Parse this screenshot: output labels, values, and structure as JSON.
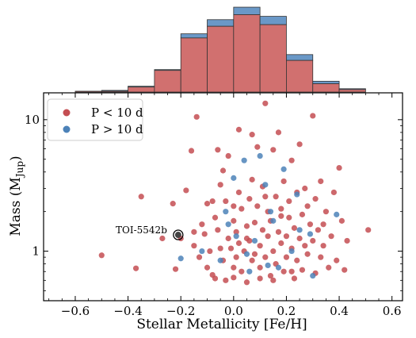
{
  "chart_data": {
    "type": "scatter",
    "xlabel": "Stellar Metallicity [Fe/H]",
    "ylabel_main": "Mass (M",
    "ylabel_sub": "Jup",
    "ylabel_close": ")",
    "xlim": [
      -0.72,
      0.64
    ],
    "ylim": [
      0.42,
      16
    ],
    "yscale": "log",
    "x_ticks": [
      -0.6,
      -0.4,
      -0.2,
      0.0,
      0.2,
      0.4,
      0.6
    ],
    "x_tick_labels": [
      "−0.6",
      "−0.4",
      "−0.2",
      "0.0",
      "0.2",
      "0.4",
      "0.6"
    ],
    "y_ticks": [
      1,
      10
    ],
    "y_tick_labels": [
      "1",
      "10"
    ],
    "legend": {
      "placement": "top-left",
      "entries": [
        {
          "label": "P < 10 d",
          "color": "#c44e52"
        },
        {
          "label": "P > 10 d",
          "color": "#4c82b8"
        }
      ]
    },
    "colors": {
      "short": "#c44e52",
      "long": "#4c82b8",
      "short_hist": "#d1706f",
      "long_hist": "#6a98c7"
    },
    "annotation": {
      "label": "TOI-5542b",
      "x": -0.21,
      "y": 1.33
    },
    "histogram": {
      "bins": [
        -0.6,
        -0.5,
        -0.4,
        -0.3,
        -0.2,
        -0.1,
        0.0,
        0.1,
        0.2,
        0.3,
        0.4,
        0.5
      ],
      "short_counts": [
        1,
        1,
        6,
        26,
        65,
        79,
        93,
        81,
        38,
        10,
        3
      ],
      "long_counts": [
        0,
        1,
        1,
        1,
        5,
        8,
        9,
        10,
        7,
        3,
        1
      ],
      "max_count": 103
    },
    "series": [
      {
        "name": "P < 10 d",
        "points": [
          [
            -0.5,
            0.93
          ],
          [
            -0.37,
            0.74
          ],
          [
            -0.35,
            2.6
          ],
          [
            -0.27,
            1.25
          ],
          [
            -0.23,
            2.3
          ],
          [
            -0.22,
            0.73
          ],
          [
            -0.2,
            1.25
          ],
          [
            -0.18,
            2.9
          ],
          [
            -0.16,
            5.8
          ],
          [
            -0.15,
            1.1
          ],
          [
            -0.13,
            0.9
          ],
          [
            -0.12,
            1.6
          ],
          [
            -0.11,
            1.35
          ],
          [
            -0.1,
            0.75
          ],
          [
            -0.1,
            2.3
          ],
          [
            -0.09,
            1.0
          ],
          [
            -0.08,
            2.4
          ],
          [
            -0.07,
            1.8
          ],
          [
            -0.07,
            0.62
          ],
          [
            -0.06,
            1.45
          ],
          [
            -0.06,
            5.9
          ],
          [
            -0.05,
            1.05
          ],
          [
            -0.05,
            3.2
          ],
          [
            -0.04,
            0.85
          ],
          [
            -0.04,
            4.1
          ],
          [
            -0.03,
            2.4
          ],
          [
            -0.03,
            0.6
          ],
          [
            -0.02,
            5.3
          ],
          [
            -0.02,
            1.25
          ],
          [
            -0.01,
            1.05
          ],
          [
            0.0,
            2.2
          ],
          [
            0.0,
            0.75
          ],
          [
            0.0,
            1.7
          ],
          [
            0.01,
            1.4
          ],
          [
            0.01,
            0.9
          ],
          [
            0.02,
            2.8
          ],
          [
            0.02,
            1.15
          ],
          [
            0.03,
            0.7
          ],
          [
            0.03,
            2.1
          ],
          [
            0.04,
            1.0
          ],
          [
            0.05,
            1.55
          ],
          [
            0.05,
            0.58
          ],
          [
            0.06,
            2.5
          ],
          [
            0.06,
            1.2
          ],
          [
            0.07,
            0.85
          ],
          [
            0.07,
            3.5
          ],
          [
            0.08,
            1.65
          ],
          [
            0.08,
            0.95
          ],
          [
            0.09,
            6.2
          ],
          [
            0.09,
            2.2
          ],
          [
            0.1,
            0.75
          ],
          [
            0.1,
            1.1
          ],
          [
            0.11,
            1.45
          ],
          [
            0.11,
            3.1
          ],
          [
            0.12,
            13.3
          ],
          [
            0.12,
            0.9
          ],
          [
            0.13,
            2.0
          ],
          [
            0.13,
            1.3
          ],
          [
            0.14,
            0.65
          ],
          [
            0.14,
            1.7
          ],
          [
            0.15,
            5.9
          ],
          [
            0.15,
            1.0
          ],
          [
            0.16,
            2.6
          ],
          [
            0.16,
            0.8
          ],
          [
            0.17,
            1.4
          ],
          [
            0.17,
            8.0
          ],
          [
            0.18,
            1.15
          ],
          [
            0.18,
            2.1
          ],
          [
            0.19,
            0.7
          ],
          [
            0.19,
            3.4
          ],
          [
            0.2,
            1.3
          ],
          [
            0.2,
            0.9
          ],
          [
            0.21,
            1.8
          ],
          [
            0.21,
            2.4
          ],
          [
            0.22,
            1.05
          ],
          [
            0.22,
            4.9
          ],
          [
            0.23,
            0.62
          ],
          [
            0.23,
            1.5
          ],
          [
            0.24,
            2.8
          ],
          [
            0.24,
            0.85
          ],
          [
            0.25,
            1.25
          ],
          [
            0.26,
            1.9
          ],
          [
            0.26,
            0.72
          ],
          [
            0.27,
            3.0
          ],
          [
            0.27,
            1.1
          ],
          [
            0.28,
            2.2
          ],
          [
            0.28,
            0.95
          ],
          [
            0.29,
            1.6
          ],
          [
            0.3,
            10.7
          ],
          [
            0.3,
            1.2
          ],
          [
            0.31,
            2.5
          ],
          [
            0.31,
            0.68
          ],
          [
            0.32,
            1.45
          ],
          [
            0.33,
            0.9
          ],
          [
            0.33,
            3.4
          ],
          [
            0.34,
            1.1
          ],
          [
            0.35,
            2.0
          ],
          [
            0.36,
            0.75
          ],
          [
            0.37,
            1.3
          ],
          [
            0.38,
            2.8
          ],
          [
            0.39,
            0.85
          ],
          [
            0.4,
            4.3
          ],
          [
            0.41,
            1.7
          ],
          [
            0.42,
            0.72
          ],
          [
            0.43,
            1.2
          ],
          [
            0.51,
            1.45
          ],
          [
            -0.14,
            10.5
          ],
          [
            0.02,
            8.4
          ],
          [
            0.07,
            7.7
          ],
          [
            0.25,
            6.5
          ],
          [
            0.0,
            0.63
          ],
          [
            0.1,
            0.62
          ],
          [
            0.15,
            0.6
          ],
          [
            -0.08,
            0.66
          ],
          [
            0.22,
            0.7
          ],
          [
            0.05,
            1.25
          ],
          [
            -0.15,
            1.4
          ],
          [
            0.18,
            1.85
          ],
          [
            0.12,
            2.6
          ],
          [
            0.34,
            1.6
          ]
        ]
      },
      {
        "name": "P > 10 d",
        "points": [
          [
            -0.2,
            0.88
          ],
          [
            -0.12,
            1.0
          ],
          [
            -0.05,
            0.85
          ],
          [
            -0.02,
            1.6
          ],
          [
            0.0,
            3.6
          ],
          [
            0.01,
            1.3
          ],
          [
            0.04,
            4.9
          ],
          [
            0.05,
            0.95
          ],
          [
            0.06,
            0.7
          ],
          [
            0.08,
            1.2
          ],
          [
            0.1,
            5.3
          ],
          [
            0.12,
            3.2
          ],
          [
            0.13,
            0.78
          ],
          [
            0.14,
            2.0
          ],
          [
            0.15,
            1.7
          ],
          [
            0.17,
            0.75
          ],
          [
            0.19,
            4.2
          ],
          [
            0.22,
            1.0
          ],
          [
            0.24,
            2.7
          ],
          [
            0.25,
            1.45
          ],
          [
            0.29,
            1.35
          ],
          [
            0.3,
            0.65
          ],
          [
            0.39,
            1.9
          ],
          [
            -0.03,
            2.0
          ]
        ]
      }
    ]
  }
}
